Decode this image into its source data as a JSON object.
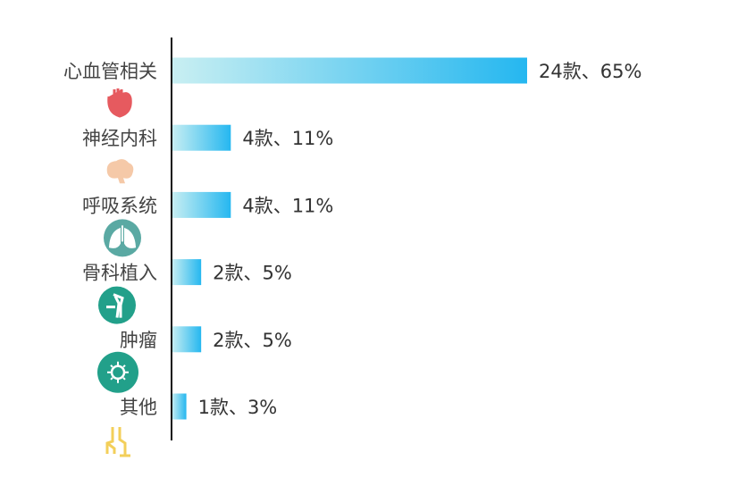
{
  "chart_data": {
    "type": "bar",
    "orientation": "horizontal",
    "categories": [
      "心血管相关",
      "神经内科",
      "呼吸系统",
      "骨科植入",
      "肿瘤",
      "其他"
    ],
    "values": [
      24,
      4,
      4,
      2,
      2,
      1
    ],
    "percents": [
      "65%",
      "11%",
      "11%",
      "5%",
      "5%",
      "3%"
    ],
    "data_labels": [
      "24款、65%",
      "4款、11%",
      "4款、11%",
      "2款、5%",
      "2款、5%",
      "1款、3%"
    ],
    "icons": [
      "heart-icon",
      "brain-icon",
      "lungs-icon",
      "bone-joint-icon",
      "virus-cell-icon",
      "dna-chain-icon"
    ],
    "title": "",
    "xlabel": "",
    "ylabel": "",
    "xlim": [
      0,
      24
    ],
    "grid": false,
    "colors": {
      "bar_start": "#c9eff2",
      "bar_end": "#25b7f0",
      "heart": "#e65a5f",
      "brain": "#f5c9a8",
      "lungs": "#5aa9a3",
      "teal": "#22a08a",
      "other": "#f3cf5a"
    }
  }
}
